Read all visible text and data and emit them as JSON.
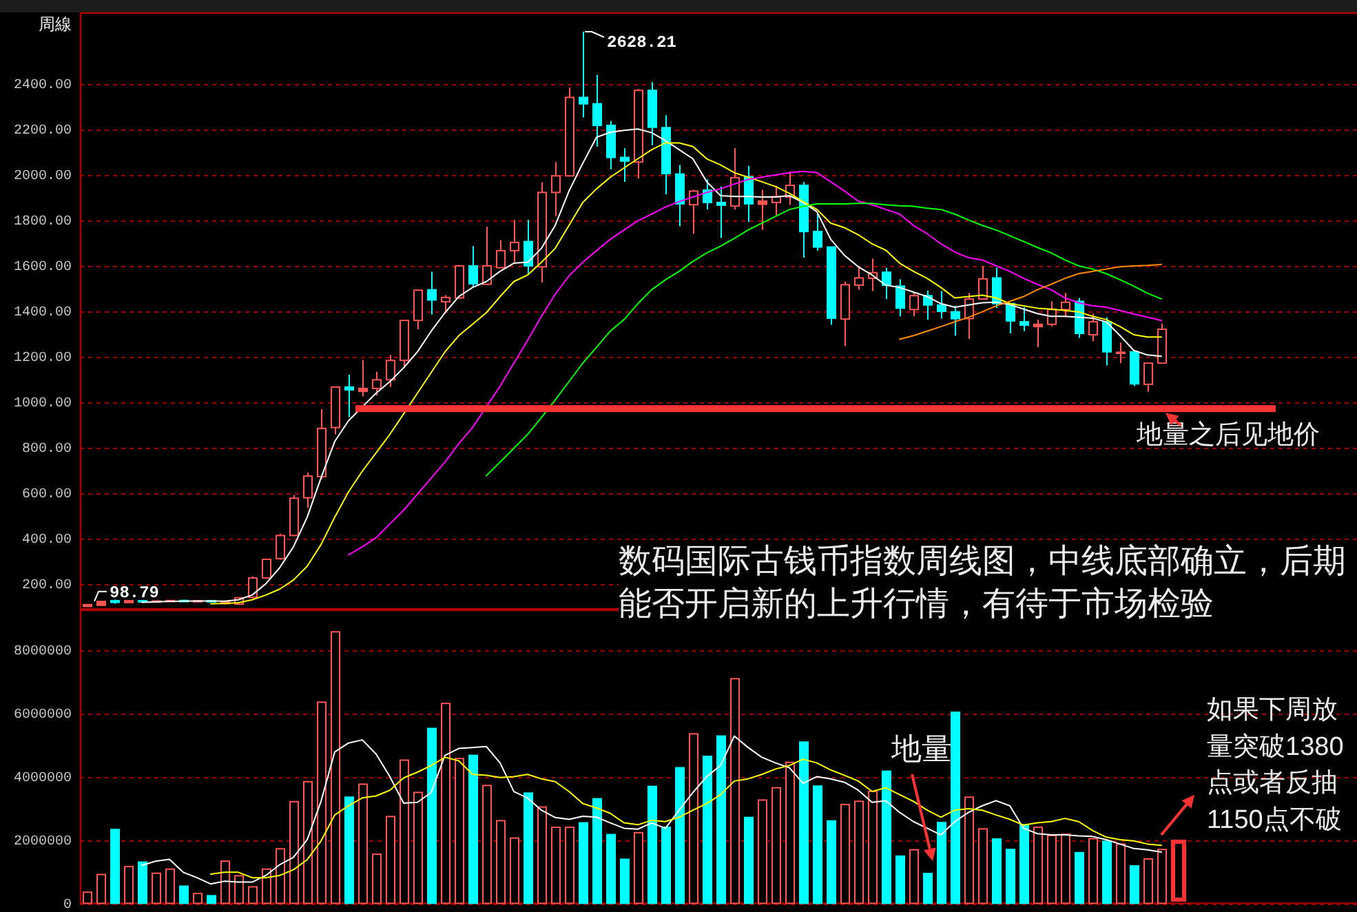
{
  "chart_data": [
    {
      "type": "candlestick",
      "title": "周線",
      "categories": [
        null,
        null,
        null,
        null,
        null,
        null,
        null,
        null,
        null,
        null,
        null,
        null,
        null,
        null,
        null,
        null,
        null,
        null,
        null,
        null,
        null,
        null,
        null,
        null,
        null,
        null,
        null,
        null,
        null,
        null,
        null,
        null,
        null,
        null,
        null,
        null,
        null,
        null,
        null,
        null,
        null,
        null,
        null,
        null,
        null,
        null,
        null,
        null,
        null,
        null,
        null,
        null,
        null,
        null,
        null,
        null,
        null,
        null,
        null,
        null,
        null,
        null,
        null,
        null,
        null,
        null,
        null,
        null,
        null,
        null,
        null,
        null,
        null,
        null,
        null,
        null,
        null,
        null,
        null
      ],
      "ohlc": [
        [
          100,
          110,
          98.79,
          108
        ],
        [
          105,
          125,
          103,
          122
        ],
        [
          125,
          130,
          112,
          118
        ],
        [
          117,
          128,
          115,
          125
        ],
        [
          125,
          128,
          116,
          120
        ],
        [
          119,
          127,
          117,
          124
        ],
        [
          122,
          128,
          120,
          126
        ],
        [
          126,
          130,
          120,
          123
        ],
        [
          122,
          127,
          121,
          125
        ],
        [
          125,
          126,
          120,
          122
        ],
        [
          112,
          123,
          108,
          120
        ],
        [
          110,
          140,
          108,
          138
        ],
        [
          140,
          232,
          135,
          225
        ],
        [
          225,
          310,
          222,
          307
        ],
        [
          310,
          420,
          305,
          412
        ],
        [
          412,
          590,
          410,
          576
        ],
        [
          578,
          689,
          533,
          673
        ],
        [
          671,
          968,
          659,
          883
        ],
        [
          887,
          1065,
          857,
          1065
        ],
        [
          1065,
          1119,
          933,
          1053
        ],
        [
          1046,
          1184,
          1024,
          1059
        ],
        [
          1059,
          1133,
          1028,
          1097
        ],
        [
          1097,
          1206,
          1065,
          1182
        ],
        [
          1182,
          1358,
          1149,
          1358
        ],
        [
          1358,
          1491,
          1319,
          1491
        ],
        [
          1493,
          1572,
          1384,
          1448
        ],
        [
          1440,
          1469,
          1392,
          1459
        ],
        [
          1457,
          1602,
          1453,
          1598
        ],
        [
          1598,
          1685,
          1503,
          1519
        ],
        [
          1517,
          1770,
          1513,
          1598
        ],
        [
          1590,
          1711,
          1590,
          1665
        ],
        [
          1665,
          1800,
          1614,
          1701
        ],
        [
          1705,
          1800,
          1560,
          1598
        ],
        [
          1594,
          1966,
          1525,
          1921
        ],
        [
          1921,
          2055,
          1816,
          1994
        ],
        [
          1994,
          2382,
          1994,
          2339
        ],
        [
          2339,
          2628.21,
          2251,
          2311
        ],
        [
          2311,
          2438,
          2123,
          2216
        ],
        [
          2216,
          2236,
          2022,
          2075
        ],
        [
          2075,
          2115,
          1968,
          2059
        ],
        [
          2055,
          2376,
          1982,
          2370
        ],
        [
          2370,
          2406,
          2129,
          2208
        ],
        [
          2206,
          2261,
          1913,
          2004
        ],
        [
          2002,
          2042,
          1772,
          1871
        ],
        [
          1867,
          1933,
          1739,
          1927
        ],
        [
          1931,
          1978,
          1846,
          1877
        ],
        [
          1877,
          1947,
          1721,
          1865
        ],
        [
          1861,
          2115,
          1846,
          1986
        ],
        [
          1990,
          2038,
          1792,
          1871
        ],
        [
          1869,
          1933,
          1756,
          1883
        ],
        [
          1877,
          1951,
          1818,
          1903
        ],
        [
          1901,
          2014,
          1867,
          1952
        ],
        [
          1952,
          1968,
          1634,
          1749
        ],
        [
          1749,
          1830,
          1665,
          1681
        ],
        [
          1681,
          1681,
          1339,
          1368
        ],
        [
          1364,
          1529,
          1246,
          1515
        ],
        [
          1513,
          1598,
          1493,
          1545
        ],
        [
          1543,
          1630,
          1487,
          1568
        ],
        [
          1570,
          1590,
          1452,
          1513
        ],
        [
          1509,
          1539,
          1376,
          1412
        ],
        [
          1406,
          1483,
          1376,
          1467
        ],
        [
          1467,
          1489,
          1362,
          1426
        ],
        [
          1426,
          1487,
          1366,
          1398
        ],
        [
          1396,
          1422,
          1291,
          1366
        ],
        [
          1366,
          1479,
          1277,
          1452
        ],
        [
          1452,
          1598,
          1452,
          1541
        ],
        [
          1545,
          1590,
          1412,
          1432
        ],
        [
          1432,
          1432,
          1301,
          1356
        ],
        [
          1352,
          1416,
          1311,
          1337
        ],
        [
          1331,
          1362,
          1240,
          1341
        ],
        [
          1341,
          1442,
          1331,
          1406
        ],
        [
          1406,
          1479,
          1372,
          1438
        ],
        [
          1442,
          1457,
          1281,
          1301
        ],
        [
          1295,
          1388,
          1267,
          1352
        ],
        [
          1352,
          1372,
          1160,
          1220
        ],
        [
          1214,
          1261,
          1170,
          1218
        ],
        [
          1220,
          1220,
          1069,
          1079
        ],
        [
          1077,
          1170,
          1044,
          1170
        ],
        [
          1170,
          1344,
          1170,
          1319
        ]
      ],
      "colors": [
        "#ff5555",
        "#ff5555",
        "#00ffff",
        "#ff5555",
        "#00ffff",
        "#ff5555",
        "#ff5555",
        "#00ffff",
        "#ff5555",
        "#00ffff",
        "#ff5555",
        "#ff5555",
        "#ff5555",
        "#ff5555",
        "#ff5555",
        "#ff5555",
        "#ff5555",
        "#ff5555",
        "#ff5555",
        "#00ffff",
        "#ff5555",
        "#ff5555",
        "#ff5555",
        "#ff5555",
        "#ff5555",
        "#00ffff",
        "#ff5555",
        "#ff5555",
        "#00ffff",
        "#ff5555",
        "#ff5555",
        "#ff5555",
        "#00ffff",
        "#ff5555",
        "#ff5555",
        "#ff5555",
        "#00ffff",
        "#00ffff",
        "#00ffff",
        "#00ffff",
        "#ff5555",
        "#00ffff",
        "#00ffff",
        "#00ffff",
        "#ff5555",
        "#00ffff",
        "#00ffff",
        "#ff5555",
        "#00ffff",
        "#ff5555",
        "#ff5555",
        "#ff5555",
        "#00ffff",
        "#00ffff",
        "#00ffff",
        "#ff5555",
        "#ff5555",
        "#ff5555",
        "#00ffff",
        "#00ffff",
        "#ff5555",
        "#00ffff",
        "#00ffff",
        "#00ffff",
        "#ff5555",
        "#ff5555",
        "#00ffff",
        "#00ffff",
        "#00ffff",
        "#ff5555",
        "#ff5555",
        "#ff5555",
        "#00ffff",
        "#ff5555",
        "#00ffff",
        "#ff5555",
        "#00ffff",
        "#ff5555",
        "#ff5555"
      ],
      "series": [
        {
          "type": "line",
          "color": "#ffffff",
          "values": [
            null,
            null,
            null,
            null,
            118,
            120,
            122,
            123,
            124,
            124,
            123,
            129,
            150,
            200,
            270,
            362,
            493,
            665,
            826,
            917,
            978,
            1038,
            1089,
            1150,
            1220,
            1311,
            1392,
            1463,
            1503,
            1529,
            1574,
            1610,
            1614,
            1675,
            1776,
            1927,
            2049,
            2164,
            2186,
            2194,
            2200,
            2184,
            2149,
            2109,
            2069,
            1968,
            1907,
            1903,
            1903,
            1901,
            1901,
            1907,
            1877,
            1836,
            1715,
            1644,
            1594,
            1558,
            1513,
            1503,
            1483,
            1463,
            1432,
            1416,
            1426,
            1436,
            1438,
            1428,
            1408,
            1388,
            1376,
            1376,
            1372,
            1368,
            1352,
            1291,
            1226,
            1206,
            1200
          ]
        },
        {
          "type": "line",
          "color": "#ffff00",
          "values": [
            null,
            null,
            null,
            null,
            null,
            null,
            null,
            null,
            null,
            112,
            113,
            116,
            129,
            150,
            176,
            216,
            277,
            372,
            493,
            604,
            695,
            776,
            857,
            947,
            1038,
            1129,
            1220,
            1291,
            1341,
            1392,
            1463,
            1529,
            1558,
            1614,
            1675,
            1776,
            1877,
            1937,
            1988,
            2029,
            2069,
            2109,
            2139,
            2139,
            2123,
            2069,
            2042,
            2008,
            1988,
            1968,
            1947,
            1917,
            1881,
            1846,
            1786,
            1766,
            1735,
            1695,
            1667,
            1610,
            1574,
            1543,
            1503,
            1457,
            1463,
            1469,
            1457,
            1432,
            1422,
            1412,
            1408,
            1402,
            1396,
            1376,
            1362,
            1331,
            1295,
            1285,
            1285
          ]
        },
        {
          "type": "line",
          "color": "#ff00ff",
          "values": [
            null,
            null,
            null,
            null,
            null,
            null,
            null,
            null,
            null,
            null,
            null,
            null,
            null,
            null,
            null,
            null,
            null,
            null,
            null,
            327,
            362,
            402,
            463,
            523,
            594,
            665,
            735,
            816,
            887,
            978,
            1069,
            1170,
            1271,
            1376,
            1473,
            1554,
            1614,
            1665,
            1715,
            1756,
            1796,
            1826,
            1857,
            1881,
            1901,
            1921,
            1937,
            1958,
            1978,
            1988,
            1998,
            2008,
            2014,
            2008,
            1968,
            1927,
            1883,
            1867,
            1846,
            1826,
            1776,
            1739,
            1695,
            1659,
            1634,
            1624,
            1598,
            1574,
            1543,
            1517,
            1493,
            1457,
            1436,
            1422,
            1416,
            1402,
            1386,
            1372,
            1358
          ]
        },
        {
          "type": "line",
          "color": "#00ff00",
          "values": [
            null,
            null,
            null,
            null,
            null,
            null,
            null,
            null,
            null,
            null,
            null,
            null,
            null,
            null,
            null,
            null,
            null,
            null,
            null,
            null,
            null,
            null,
            null,
            null,
            null,
            null,
            null,
            null,
            null,
            675,
            735,
            796,
            857,
            931,
            1008,
            1089,
            1170,
            1240,
            1311,
            1362,
            1432,
            1493,
            1537,
            1574,
            1618,
            1655,
            1685,
            1719,
            1756,
            1786,
            1816,
            1846,
            1860,
            1871,
            1871,
            1871,
            1873,
            1873,
            1867,
            1862,
            1860,
            1852,
            1846,
            1826,
            1800,
            1776,
            1756,
            1731,
            1705,
            1679,
            1655,
            1624,
            1598,
            1584,
            1564,
            1537,
            1509,
            1477,
            1453
          ]
        },
        {
          "type": "line",
          "color": "#ff8c00",
          "values": [
            null,
            null,
            null,
            null,
            null,
            null,
            null,
            null,
            null,
            null,
            null,
            null,
            null,
            null,
            null,
            null,
            null,
            null,
            null,
            null,
            null,
            null,
            null,
            null,
            null,
            null,
            null,
            null,
            null,
            null,
            null,
            null,
            null,
            null,
            null,
            null,
            null,
            null,
            null,
            null,
            null,
            null,
            null,
            null,
            null,
            null,
            null,
            null,
            null,
            null,
            null,
            null,
            null,
            null,
            null,
            null,
            null,
            null,
            null,
            1275,
            1291,
            1311,
            1331,
            1352,
            1372,
            1396,
            1422,
            1442,
            1463,
            1493,
            1517,
            1543,
            1564,
            1574,
            1584,
            1594,
            1598,
            1600,
            1604
          ]
        }
      ],
      "ylim": [
        89,
        2710
      ],
      "yticks": [
        {
          "value": 200,
          "label": "200.00"
        },
        {
          "value": 400,
          "label": "400.00"
        },
        {
          "value": 600,
          "label": "600.00"
        },
        {
          "value": 800,
          "label": "800.00"
        },
        {
          "value": 1000,
          "label": "1000.00"
        },
        {
          "value": 1200,
          "label": "1200.00"
        },
        {
          "value": 1400,
          "label": "1400.00"
        },
        {
          "value": 1600,
          "label": "1600.00"
        },
        {
          "value": 1800,
          "label": "1800.00"
        },
        {
          "value": 2000,
          "label": "2000.00"
        },
        {
          "value": 2200,
          "label": "2200.00"
        },
        {
          "value": 2400,
          "label": "2400.00"
        }
      ],
      "grid": "y",
      "tick_labels": "y",
      "ref_lines": [
        {
          "axis": "y",
          "value": 970,
          "label": "地量之后见地价",
          "color": "#ff3333"
        }
      ],
      "annotations": [
        "2628.21",
        "98.79",
        "数码国际古钱币指数周线图，中线底部确立，后期能否开启新的上升行情，有待于市场检验"
      ]
    },
    {
      "type": "bar",
      "categories": [
        null,
        null,
        null,
        null,
        null,
        null,
        null,
        null,
        null,
        null,
        null,
        null,
        null,
        null,
        null,
        null,
        null,
        null,
        null,
        null,
        null,
        null,
        null,
        null,
        null,
        null,
        null,
        null,
        null,
        null,
        null,
        null,
        null,
        null,
        null,
        null,
        null,
        null,
        null,
        null,
        null,
        null,
        null,
        null,
        null,
        null,
        null,
        null,
        null,
        null,
        null,
        null,
        null,
        null,
        null,
        null,
        null,
        null,
        null,
        null,
        null,
        null,
        null,
        null,
        null,
        null,
        null,
        null,
        null,
        null,
        null,
        null,
        null,
        null,
        null,
        null,
        null,
        null,
        null
      ],
      "series": [
        {
          "values": [
            350000,
            910000,
            2330000,
            1160000,
            1300000,
            950000,
            1080000,
            540000,
            310000,
            240000,
            1330000,
            870000,
            520000,
            1080000,
            1720000,
            3210000,
            3840000,
            6350000,
            8570000,
            3350000,
            3760000,
            1550000,
            2740000,
            4520000,
            3500000,
            5520000,
            6310000,
            4570000,
            4670000,
            3720000,
            2610000,
            2060000,
            3480000,
            3040000,
            2400000,
            2400000,
            2540000,
            3300000,
            2170000,
            1390000,
            2230000,
            3690000,
            2400000,
            4280000,
            5350000,
            4640000,
            5280000,
            7090000,
            2710000,
            3260000,
            3650000,
            4450000,
            5090000,
            3700000,
            2600000,
            3120000,
            3220000,
            3530000,
            4170000,
            1490000,
            1690000,
            940000,
            2550000,
            6030000,
            3350000,
            2350000,
            2030000,
            1700000,
            2480000,
            2400000,
            2140000,
            2180000,
            1600000,
            2040000,
            1960000,
            1870000,
            1180000,
            1400000,
            1700000
          ],
          "colors": [
            "#ff5555",
            "#ff5555",
            "#00ffff",
            "#ff5555",
            "#00ffff",
            "#ff5555",
            "#ff5555",
            "#00ffff",
            "#ff5555",
            "#00ffff",
            "#ff5555",
            "#ff5555",
            "#ff5555",
            "#ff5555",
            "#ff5555",
            "#ff5555",
            "#ff5555",
            "#ff5555",
            "#ff5555",
            "#00ffff",
            "#ff5555",
            "#ff5555",
            "#ff5555",
            "#ff5555",
            "#ff5555",
            "#00ffff",
            "#ff5555",
            "#ff5555",
            "#00ffff",
            "#ff5555",
            "#ff5555",
            "#ff5555",
            "#00ffff",
            "#ff5555",
            "#ff5555",
            "#ff5555",
            "#00ffff",
            "#00ffff",
            "#00ffff",
            "#00ffff",
            "#ff5555",
            "#00ffff",
            "#00ffff",
            "#00ffff",
            "#ff5555",
            "#00ffff",
            "#00ffff",
            "#ff5555",
            "#00ffff",
            "#ff5555",
            "#ff5555",
            "#ff5555",
            "#00ffff",
            "#00ffff",
            "#00ffff",
            "#ff5555",
            "#ff5555",
            "#ff5555",
            "#00ffff",
            "#00ffff",
            "#ff5555",
            "#00ffff",
            "#00ffff",
            "#00ffff",
            "#ff5555",
            "#ff5555",
            "#00ffff",
            "#00ffff",
            "#00ffff",
            "#ff5555",
            "#ff5555",
            "#ff5555",
            "#00ffff",
            "#ff5555",
            "#00ffff",
            "#ff5555",
            "#00ffff",
            "#ff5555",
            "#ff5555"
          ]
        },
        {
          "type": "line",
          "color": "#ffffff",
          "values": [
            null,
            null,
            null,
            null,
            1200000,
            1330000,
            1390000,
            980000,
            810000,
            610000,
            700000,
            670000,
            670000,
            880000,
            1220000,
            1450000,
            2010000,
            3220000,
            4780000,
            5060000,
            5160000,
            4710000,
            4000000,
            3160000,
            3190000,
            3500000,
            4670000,
            4890000,
            4920000,
            4950000,
            4430000,
            3530000,
            3320000,
            2940000,
            2710000,
            2650000,
            2750000,
            2720000,
            2540000,
            2370000,
            2340000,
            2540000,
            2370000,
            2940000,
            3500000,
            4000000,
            4350000,
            5280000,
            4920000,
            4610000,
            4430000,
            4280000,
            3790000,
            4000000,
            3930000,
            3820000,
            3570000,
            3190000,
            3240000,
            2870000,
            2580000,
            2370000,
            2160000,
            2580000,
            2870000,
            3080000,
            3240000,
            3080000,
            2370000,
            2200000,
            2160000,
            2160000,
            2130000,
            2110000,
            2010000,
            1870000,
            1730000,
            1690000,
            1620000
          ]
        },
        {
          "type": "line",
          "color": "#ffff00",
          "values": [
            null,
            null,
            null,
            null,
            null,
            null,
            null,
            null,
            null,
            920000,
            980000,
            980000,
            810000,
            810000,
            880000,
            1060000,
            1380000,
            1970000,
            2790000,
            3080000,
            3330000,
            3390000,
            3570000,
            3960000,
            4140000,
            4350000,
            4610000,
            4500000,
            4070000,
            4040000,
            3970000,
            4000000,
            4070000,
            3930000,
            3840000,
            3530000,
            3150000,
            3010000,
            2840000,
            2540000,
            2480000,
            2620000,
            2580000,
            2720000,
            2940000,
            3150000,
            3430000,
            3860000,
            3930000,
            4070000,
            4240000,
            4350000,
            4550000,
            4430000,
            4210000,
            4040000,
            3860000,
            3530000,
            3650000,
            3430000,
            3220000,
            2940000,
            2720000,
            2940000,
            2990000,
            2940000,
            2790000,
            2650000,
            2470000,
            2540000,
            2580000,
            2680000,
            2580000,
            2300000,
            2090000,
            2010000,
            1970000,
            1870000,
            1830000
          ]
        }
      ],
      "ylim": [
        0,
        9250000
      ],
      "yticks": [
        0,
        2000000,
        4000000,
        6000000,
        8000000
      ],
      "grid": "y",
      "tick_labels": "y",
      "annotations": [
        "地量",
        "如果下周放量突破1380点或者反抽1150点不破"
      ]
    }
  ]
}
